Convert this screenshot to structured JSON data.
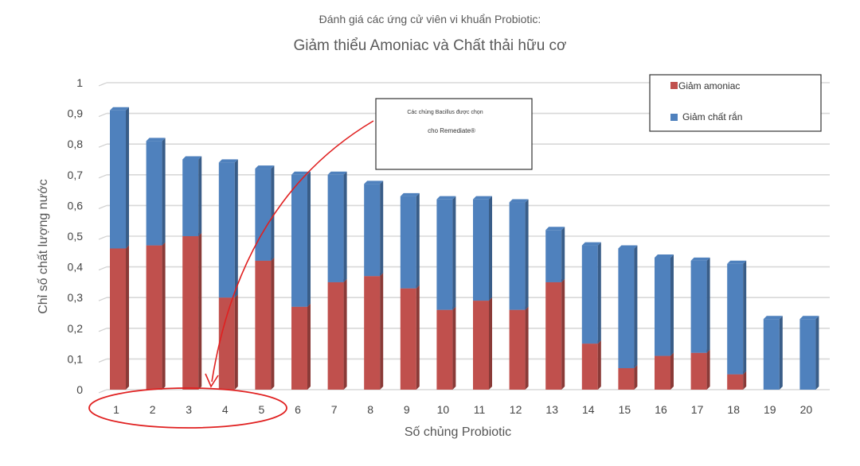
{
  "chart_data": {
    "type": "bar",
    "stacked": true,
    "title_line1": "Đánh giá các ứng cử viên vi khuẩn Probiotic:",
    "title_line2": "Giảm thiểu Amoniac và Chất thải hữu cơ",
    "xlabel": "Số chủng Probiotic",
    "ylabel": "Chỉ số chất lượng nước",
    "ylim": [
      0,
      1
    ],
    "yticks": [
      "0",
      "0,1",
      "0,2",
      "0,3",
      "0,4",
      "0,5",
      "0,6",
      "0,7",
      "0,8",
      "0,9",
      "1"
    ],
    "categories": [
      "1",
      "2",
      "3",
      "4",
      "5",
      "6",
      "7",
      "8",
      "9",
      "10",
      "11",
      "12",
      "13",
      "14",
      "15",
      "16",
      "17",
      "18",
      "19",
      "20"
    ],
    "series": [
      {
        "name": "Giảm amoniac",
        "color": "#c0504d",
        "values": [
          0.46,
          0.47,
          0.5,
          0.3,
          0.42,
          0.27,
          0.35,
          0.37,
          0.33,
          0.26,
          0.29,
          0.26,
          0.35,
          0.15,
          0.07,
          0.11,
          0.12,
          0.05,
          0.0,
          0.0
        ]
      },
      {
        "name": "Giảm chất rắn",
        "color": "#4f81bd",
        "values": [
          0.45,
          0.34,
          0.25,
          0.44,
          0.3,
          0.43,
          0.35,
          0.3,
          0.3,
          0.36,
          0.33,
          0.35,
          0.17,
          0.32,
          0.39,
          0.32,
          0.3,
          0.36,
          0.23,
          0.23
        ]
      }
    ],
    "grid": true,
    "legend_position": "top-right",
    "annotation": {
      "line1": "Các chủng Bacillus được chọn",
      "line2": "cho Remediate®",
      "highlighted_categories": [
        "1",
        "2",
        "3",
        "4",
        "5"
      ],
      "color": "#e02020"
    }
  }
}
